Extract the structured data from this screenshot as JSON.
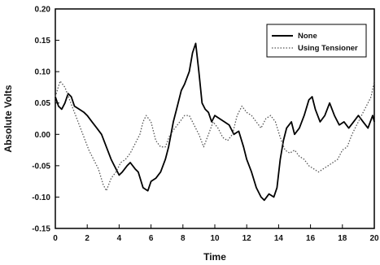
{
  "chart_data": {
    "type": "line",
    "xlabel": "Time",
    "ylabel": "Absolute Volts",
    "xlim": [
      0,
      20
    ],
    "ylim": [
      -0.15,
      0.2
    ],
    "xticks": [
      "0",
      "2",
      "4",
      "6",
      "8",
      "10",
      "12",
      "14",
      "16",
      "18",
      "20"
    ],
    "yticks": [
      "-0.15",
      "-0.10",
      "-0.05",
      "0.00",
      "0.05",
      "0.10",
      "0.15",
      "0.20"
    ],
    "grid": false,
    "legend_position": "top-right",
    "series": [
      {
        "name": "None",
        "style": "solid",
        "color": "#000000",
        "points": [
          [
            0,
            0.06
          ],
          [
            0.2,
            0.045
          ],
          [
            0.4,
            0.04
          ],
          [
            0.6,
            0.05
          ],
          [
            0.8,
            0.065
          ],
          [
            1.0,
            0.06
          ],
          [
            1.2,
            0.045
          ],
          [
            1.5,
            0.04
          ],
          [
            1.8,
            0.035
          ],
          [
            2.0,
            0.03
          ],
          [
            2.3,
            0.02
          ],
          [
            2.6,
            0.01
          ],
          [
            2.9,
            0.0
          ],
          [
            3.2,
            -0.02
          ],
          [
            3.5,
            -0.04
          ],
          [
            3.7,
            -0.05
          ],
          [
            4.0,
            -0.065
          ],
          [
            4.2,
            -0.06
          ],
          [
            4.5,
            -0.05
          ],
          [
            4.7,
            -0.045
          ],
          [
            5.0,
            -0.055
          ],
          [
            5.2,
            -0.06
          ],
          [
            5.5,
            -0.085
          ],
          [
            5.8,
            -0.09
          ],
          [
            6.0,
            -0.075
          ],
          [
            6.3,
            -0.07
          ],
          [
            6.6,
            -0.06
          ],
          [
            6.9,
            -0.04
          ],
          [
            7.1,
            -0.02
          ],
          [
            7.4,
            0.02
          ],
          [
            7.6,
            0.04
          ],
          [
            7.9,
            0.07
          ],
          [
            8.1,
            0.08
          ],
          [
            8.4,
            0.1
          ],
          [
            8.6,
            0.13
          ],
          [
            8.8,
            0.145
          ],
          [
            9.0,
            0.1
          ],
          [
            9.2,
            0.05
          ],
          [
            9.4,
            0.04
          ],
          [
            9.6,
            0.035
          ],
          [
            9.8,
            0.02
          ],
          [
            10.0,
            0.03
          ],
          [
            10.3,
            0.025
          ],
          [
            10.6,
            0.02
          ],
          [
            10.9,
            0.015
          ],
          [
            11.2,
            0.0
          ],
          [
            11.5,
            0.005
          ],
          [
            11.8,
            -0.02
          ],
          [
            12.0,
            -0.04
          ],
          [
            12.3,
            -0.06
          ],
          [
            12.6,
            -0.085
          ],
          [
            12.9,
            -0.1
          ],
          [
            13.1,
            -0.105
          ],
          [
            13.4,
            -0.095
          ],
          [
            13.7,
            -0.1
          ],
          [
            13.9,
            -0.085
          ],
          [
            14.1,
            -0.04
          ],
          [
            14.3,
            -0.01
          ],
          [
            14.5,
            0.01
          ],
          [
            14.8,
            0.02
          ],
          [
            15.0,
            0.0
          ],
          [
            15.3,
            0.01
          ],
          [
            15.6,
            0.03
          ],
          [
            15.9,
            0.055
          ],
          [
            16.1,
            0.06
          ],
          [
            16.3,
            0.04
          ],
          [
            16.6,
            0.02
          ],
          [
            16.9,
            0.03
          ],
          [
            17.2,
            0.05
          ],
          [
            17.5,
            0.03
          ],
          [
            17.8,
            0.015
          ],
          [
            18.1,
            0.02
          ],
          [
            18.4,
            0.01
          ],
          [
            18.7,
            0.02
          ],
          [
            19.0,
            0.03
          ],
          [
            19.3,
            0.02
          ],
          [
            19.6,
            0.01
          ],
          [
            19.9,
            0.03
          ],
          [
            20,
            0.02
          ]
        ]
      },
      {
        "name": "Using Tensioner",
        "style": "dotted",
        "color": "#555555",
        "points": [
          [
            0,
            0.06
          ],
          [
            0.3,
            0.085
          ],
          [
            0.6,
            0.075
          ],
          [
            0.9,
            0.055
          ],
          [
            1.2,
            0.035
          ],
          [
            1.5,
            0.015
          ],
          [
            1.8,
            -0.005
          ],
          [
            2.1,
            -0.025
          ],
          [
            2.4,
            -0.04
          ],
          [
            2.7,
            -0.055
          ],
          [
            3.0,
            -0.08
          ],
          [
            3.2,
            -0.09
          ],
          [
            3.5,
            -0.07
          ],
          [
            3.8,
            -0.06
          ],
          [
            4.1,
            -0.045
          ],
          [
            4.4,
            -0.04
          ],
          [
            4.7,
            -0.03
          ],
          [
            5.0,
            -0.015
          ],
          [
            5.3,
            0.0
          ],
          [
            5.5,
            0.02
          ],
          [
            5.7,
            0.03
          ],
          [
            6.0,
            0.02
          ],
          [
            6.3,
            -0.01
          ],
          [
            6.6,
            -0.02
          ],
          [
            6.9,
            -0.02
          ],
          [
            7.2,
            0.0
          ],
          [
            7.5,
            0.01
          ],
          [
            7.8,
            0.02
          ],
          [
            8.1,
            0.03
          ],
          [
            8.4,
            0.03
          ],
          [
            8.7,
            0.015
          ],
          [
            9.0,
            0.0
          ],
          [
            9.3,
            -0.02
          ],
          [
            9.6,
            0.0
          ],
          [
            9.9,
            0.02
          ],
          [
            10.2,
            0.01
          ],
          [
            10.5,
            -0.005
          ],
          [
            10.8,
            -0.01
          ],
          [
            11.1,
            0.0
          ],
          [
            11.4,
            0.03
          ],
          [
            11.7,
            0.045
          ],
          [
            12.0,
            0.035
          ],
          [
            12.3,
            0.03
          ],
          [
            12.6,
            0.02
          ],
          [
            12.9,
            0.01
          ],
          [
            13.2,
            0.025
          ],
          [
            13.5,
            0.03
          ],
          [
            13.8,
            0.02
          ],
          [
            14.1,
            -0.005
          ],
          [
            14.4,
            -0.025
          ],
          [
            14.7,
            -0.03
          ],
          [
            15.0,
            -0.025
          ],
          [
            15.3,
            -0.035
          ],
          [
            15.6,
            -0.04
          ],
          [
            15.9,
            -0.05
          ],
          [
            16.2,
            -0.055
          ],
          [
            16.5,
            -0.06
          ],
          [
            16.8,
            -0.055
          ],
          [
            17.1,
            -0.05
          ],
          [
            17.4,
            -0.045
          ],
          [
            17.7,
            -0.04
          ],
          [
            18.0,
            -0.025
          ],
          [
            18.3,
            -0.02
          ],
          [
            18.6,
            0.0
          ],
          [
            18.9,
            0.015
          ],
          [
            19.2,
            0.03
          ],
          [
            19.5,
            0.045
          ],
          [
            19.8,
            0.06
          ],
          [
            20,
            0.085
          ]
        ]
      }
    ]
  }
}
